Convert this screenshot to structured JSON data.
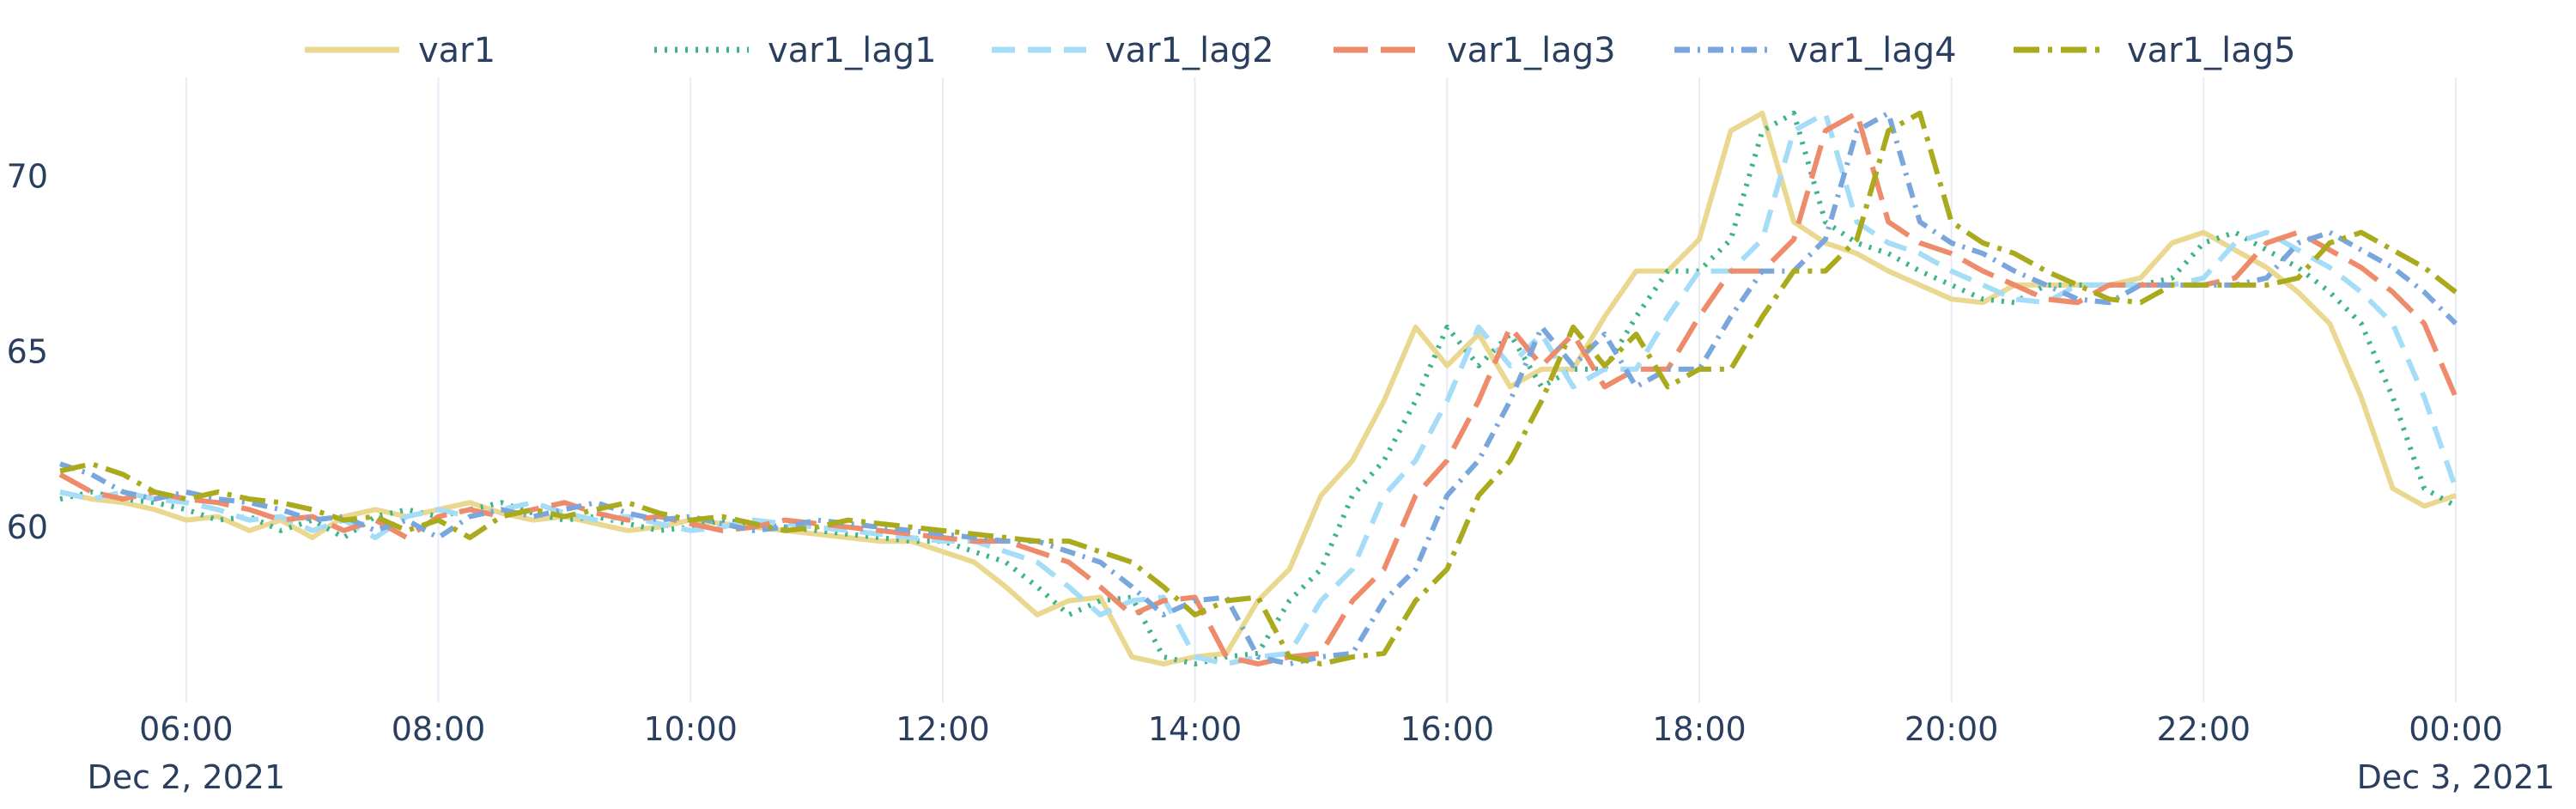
{
  "chart_data": {
    "type": "line",
    "title": "",
    "xlabel": "",
    "ylabel": "",
    "x_start": "2021-12-02 05:00",
    "x_end": "2021-12-03 00:00",
    "x_step_minutes": 15,
    "xlim": [
      "2021-12-02 05:00",
      "2021-12-03 00:00"
    ],
    "ylim": [
      55,
      72.7
    ],
    "x_ticks": [
      {
        "time": "2021-12-02 06:00",
        "label": "06:00",
        "sublabel": "Dec 2, 2021"
      },
      {
        "time": "2021-12-02 08:00",
        "label": "08:00",
        "sublabel": ""
      },
      {
        "time": "2021-12-02 10:00",
        "label": "10:00",
        "sublabel": ""
      },
      {
        "time": "2021-12-02 12:00",
        "label": "12:00",
        "sublabel": ""
      },
      {
        "time": "2021-12-02 14:00",
        "label": "14:00",
        "sublabel": ""
      },
      {
        "time": "2021-12-02 16:00",
        "label": "16:00",
        "sublabel": ""
      },
      {
        "time": "2021-12-02 18:00",
        "label": "18:00",
        "sublabel": ""
      },
      {
        "time": "2021-12-02 20:00",
        "label": "20:00",
        "sublabel": ""
      },
      {
        "time": "2021-12-02 22:00",
        "label": "22:00",
        "sublabel": ""
      },
      {
        "time": "2021-12-03 00:00",
        "label": "00:00",
        "sublabel": "Dec 3, 2021"
      }
    ],
    "y_ticks": [
      60,
      65,
      70
    ],
    "grid": "vertical",
    "legend_position": "top",
    "series": [
      {
        "name": "var1",
        "color": "#ebd890",
        "dash": "solid",
        "offset": 0
      },
      {
        "name": "var1_lag1",
        "color": "#3eb489",
        "dash": "dot",
        "offset": 1
      },
      {
        "name": "var1_lag2",
        "color": "#a5dcf7",
        "dash": "dash",
        "offset": 2
      },
      {
        "name": "var1_lag3",
        "color": "#ed8b6b",
        "dash": "longdash",
        "offset": 3
      },
      {
        "name": "var1_lag4",
        "color": "#79a6dc",
        "dash": "dashdot",
        "offset": 4
      },
      {
        "name": "var1_lag5",
        "color": "#a9aa1c",
        "dash": "longdashdot",
        "offset": 5
      }
    ],
    "base_values": [
      63.1,
      62.9,
      62.5,
      62.2,
      61.9,
      61.6,
      61.8,
      61.5,
      61.0,
      60.8,
      61.0,
      60.8,
      60.7,
      60.5,
      60.2,
      60.3,
      59.9,
      60.2,
      59.7,
      60.3,
      60.5,
      60.3,
      60.5,
      60.7,
      60.4,
      60.2,
      60.3,
      60.1,
      59.9,
      60.0,
      60.2,
      60.1,
      60.0,
      59.9,
      59.8,
      59.7,
      59.6,
      59.6,
      59.3,
      59.0,
      58.3,
      57.5,
      57.9,
      58.0,
      56.3,
      56.1,
      56.3,
      56.4,
      57.9,
      58.8,
      60.9,
      61.9,
      63.6,
      65.7,
      64.6,
      65.5,
      64.0,
      64.5,
      64.5,
      66.0,
      67.3,
      67.3,
      68.2,
      71.3,
      71.8,
      68.7,
      68.1,
      67.8,
      67.3,
      66.9,
      66.5,
      66.4,
      66.9,
      66.9,
      66.9,
      66.9,
      67.1,
      68.1,
      68.4,
      67.9,
      67.4,
      66.7,
      65.8,
      63.7,
      61.1,
      60.6,
      60.9
    ]
  }
}
